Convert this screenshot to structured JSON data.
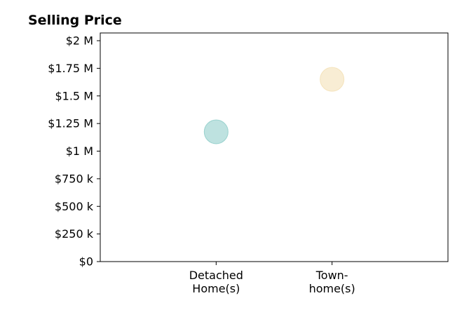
{
  "chart_data": {
    "type": "scatter",
    "title": "Selling Price",
    "xlabel": "",
    "ylabel": "",
    "categories": [
      [
        "Detached",
        "Home(s)"
      ],
      [
        "Town-",
        "home(s)"
      ]
    ],
    "points": [
      {
        "category_index": 0,
        "value": 1175000,
        "color": "#88cbc6"
      },
      {
        "category_index": 1,
        "value": 1650000,
        "color": "#f3dfb0"
      }
    ],
    "y_ticks": [
      {
        "value": 0,
        "label": "$0"
      },
      {
        "value": 250000,
        "label": "$250 k"
      },
      {
        "value": 500000,
        "label": "$500 k"
      },
      {
        "value": 750000,
        "label": "$750 k"
      },
      {
        "value": 1000000,
        "label": "$1 M"
      },
      {
        "value": 1250000,
        "label": "$1.25 M"
      },
      {
        "value": 1500000,
        "label": "$1.5 M"
      },
      {
        "value": 1750000,
        "label": "$1.75 M"
      },
      {
        "value": 2000000,
        "label": "$2 M"
      }
    ],
    "ylim": [
      0,
      2070000
    ],
    "xlim": [
      -1,
      2
    ],
    "grid": false,
    "legend": "none",
    "point_opacity": 0.55
  }
}
